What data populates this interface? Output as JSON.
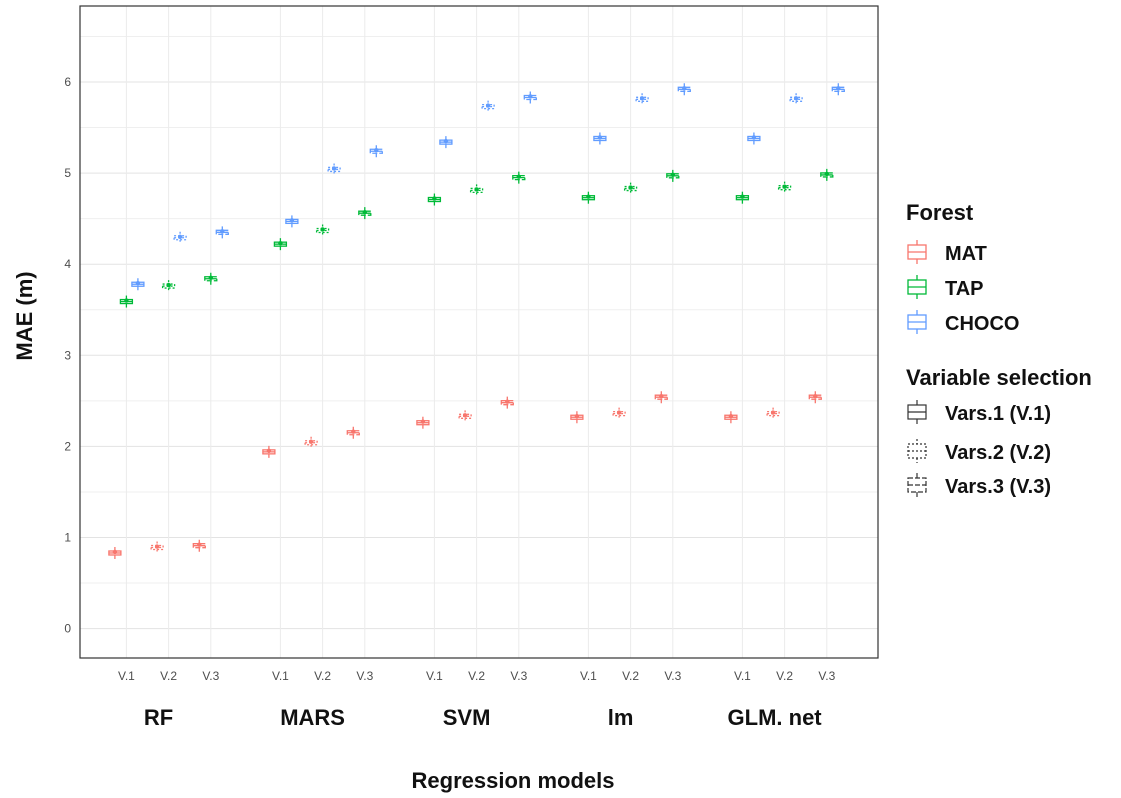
{
  "chart_data": {
    "type": "box",
    "xlabel": "Regression models",
    "ylabel": "MAE (m)",
    "y_ticks": [
      "0",
      "1",
      "2",
      "3",
      "4",
      "5",
      "6"
    ],
    "ylim": [
      -0.3,
      6.8
    ],
    "grid": true,
    "legend_placement": "right",
    "variable_labels": [
      "V.1",
      "V.2",
      "V.3"
    ],
    "models": [
      "RF",
      "MARS",
      "SVM",
      "lm",
      "GLM. net"
    ],
    "series": [
      {
        "name": "MAT",
        "color": "#F8766D",
        "values": [
          [
            0.83,
            0.89,
            0.91
          ],
          [
            1.94,
            2.04,
            2.15
          ],
          [
            2.26,
            2.33,
            2.48
          ],
          [
            2.32,
            2.36,
            2.54
          ],
          [
            2.32,
            2.36,
            2.54
          ]
        ]
      },
      {
        "name": "TAP",
        "color": "#00BA38",
        "values": [
          [
            3.59,
            3.76,
            3.84
          ],
          [
            4.22,
            4.37,
            4.56
          ],
          [
            4.71,
            4.81,
            4.95
          ],
          [
            4.73,
            4.83,
            4.97
          ],
          [
            4.73,
            4.84,
            4.98
          ]
        ]
      },
      {
        "name": "CHOCO",
        "color": "#619CFF",
        "values": [
          [
            3.78,
            4.29,
            4.35
          ],
          [
            4.47,
            5.04,
            5.24
          ],
          [
            5.34,
            5.73,
            5.83
          ],
          [
            5.38,
            5.81,
            5.92
          ],
          [
            5.38,
            5.81,
            5.92
          ]
        ]
      }
    ],
    "legend": {
      "forest_title": "Forest",
      "forest_items": [
        "MAT",
        "TAP",
        "CHOCO"
      ],
      "variable_title": "Variable selection",
      "variable_items": [
        "Vars.1 (V.1)",
        "Vars.2 (V.2)",
        "Vars.3 (V.3)"
      ]
    }
  }
}
